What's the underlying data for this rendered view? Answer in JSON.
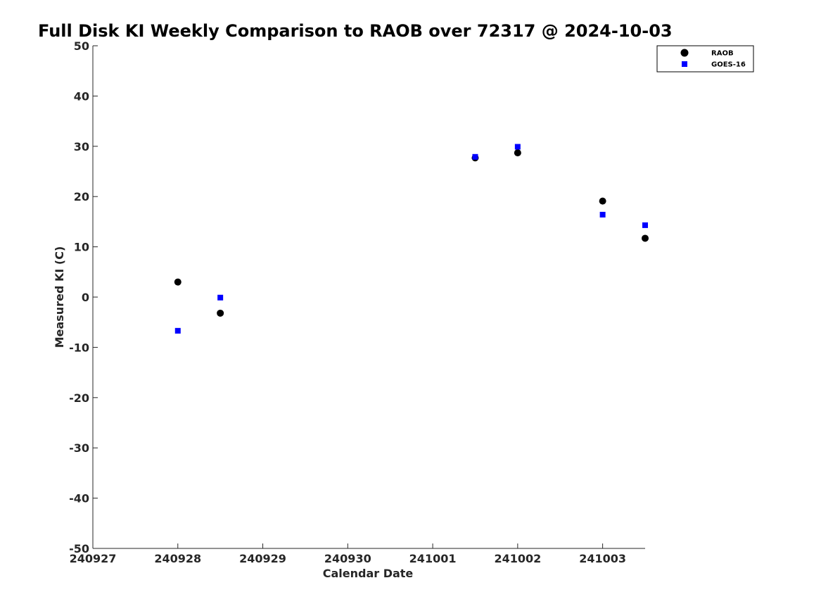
{
  "chart_data": {
    "type": "scatter",
    "title": "Full Disk KI Weekly Comparison to RAOB over 72317 @ 2024-10-03",
    "xlabel": "Calendar Date",
    "ylabel": "Measured KI (C)",
    "xlim": [
      "2024-09-27",
      "2024-10-03T12:00"
    ],
    "ylim": [
      -50,
      50
    ],
    "x_ticks": [
      "240927",
      "240928",
      "240929",
      "240930",
      "241001",
      "241002",
      "241003"
    ],
    "y_ticks": [
      "-50",
      "-40",
      "-30",
      "-20",
      "-10",
      "0",
      "10",
      "20",
      "30",
      "40",
      "50"
    ],
    "grid": false,
    "legend_position": "top-right",
    "series": [
      {
        "name": "RAOB",
        "marker": "circle",
        "color": "#000000",
        "points": [
          {
            "x": "2024-09-28T00:00",
            "y": 3.0
          },
          {
            "x": "2024-09-28T12:00",
            "y": -3.2
          },
          {
            "x": "2024-10-01T12:00",
            "y": 27.7
          },
          {
            "x": "2024-10-02T00:00",
            "y": 28.7
          },
          {
            "x": "2024-10-03T00:00",
            "y": 19.1
          },
          {
            "x": "2024-10-03T12:00",
            "y": 11.7
          }
        ]
      },
      {
        "name": "GOES-16",
        "marker": "square",
        "color": "#0000ff",
        "points": [
          {
            "x": "2024-09-28T00:00",
            "y": -6.7
          },
          {
            "x": "2024-09-28T12:00",
            "y": -0.1
          },
          {
            "x": "2024-10-01T12:00",
            "y": 27.9
          },
          {
            "x": "2024-10-02T00:00",
            "y": 29.9
          },
          {
            "x": "2024-10-03T00:00",
            "y": 16.4
          },
          {
            "x": "2024-10-03T12:00",
            "y": 14.3
          }
        ]
      }
    ]
  }
}
